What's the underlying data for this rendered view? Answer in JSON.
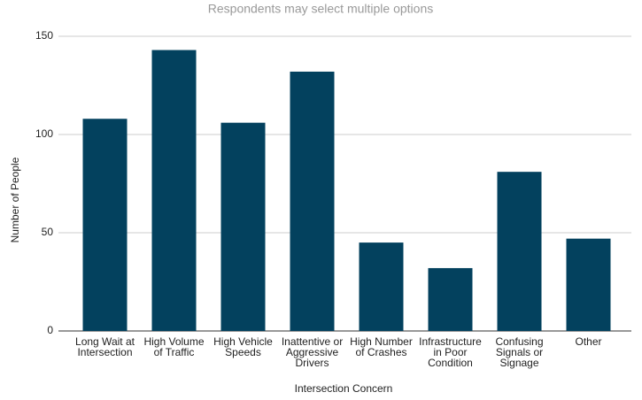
{
  "chart_data": {
    "type": "bar",
    "subtitle": "Respondents may select multiple options",
    "x_label": "Intersection Concern",
    "y_label": "Number of People",
    "categories": [
      "Long Wait at Intersection",
      "High Volume of Traffic",
      "High Vehicle Speeds",
      "Inattentive or Aggressive Drivers",
      "High Number of Crashes",
      "Infrastructure in Poor Condition",
      "Confusing Signals or Signage",
      "Other"
    ],
    "values": [
      108,
      143,
      106,
      132,
      45,
      32,
      81,
      47
    ],
    "color": "#03415e",
    "ylim": [
      0,
      150
    ],
    "yticks": [
      0,
      50,
      100,
      150
    ],
    "grid": true
  }
}
